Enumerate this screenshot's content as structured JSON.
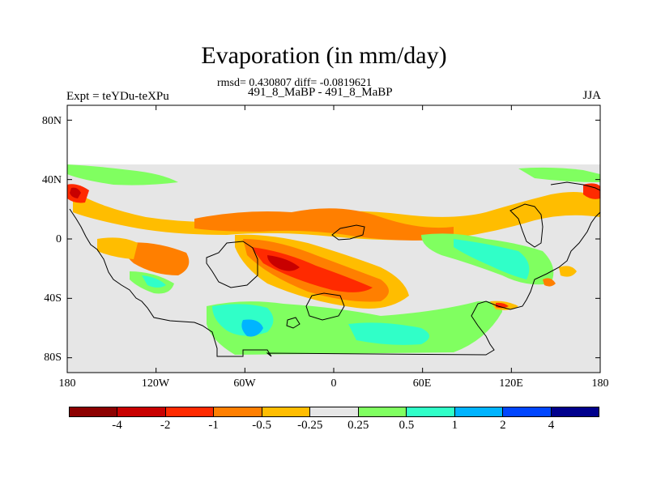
{
  "figure": {
    "title": "Evaporation (in mm/day)",
    "stats": "rmsd= 0.430807 diff= -0.0819621",
    "case_label": "491_8_MaBP - 491_8_MaBP",
    "left_label": "Expt = teYDu-teXPu",
    "right_label": "JJA"
  },
  "axes": {
    "lat_ticks": [
      "80N",
      "40N",
      "0",
      "40S",
      "80S"
    ],
    "lat_values": [
      80,
      40,
      0,
      -40,
      -80
    ],
    "lon_ticks": [
      "180",
      "120W",
      "60W",
      "0",
      "60E",
      "120E",
      "180"
    ],
    "lon_values": [
      -180,
      -120,
      -60,
      0,
      60,
      120,
      180
    ]
  },
  "colorbar": {
    "colors": [
      "#8c0000",
      "#c80000",
      "#ff2a00",
      "#ff7f00",
      "#ffbd00",
      "#e6e6e6",
      "#80ff60",
      "#30ffc8",
      "#00b4ff",
      "#0046ff",
      "#00008c"
    ],
    "labels": [
      "-4",
      "-2",
      "-1",
      "-0.5",
      "-0.25",
      "0.25",
      "0.5",
      "1",
      "2",
      "4"
    ]
  },
  "map": {
    "background_color": "#e6e6e6",
    "ocean_color": "#ffffff",
    "data_lat_range": [
      -90,
      50
    ],
    "axis_lat_range": [
      -90,
      90
    ],
    "axis_lon_range": [
      -180,
      180
    ]
  }
}
